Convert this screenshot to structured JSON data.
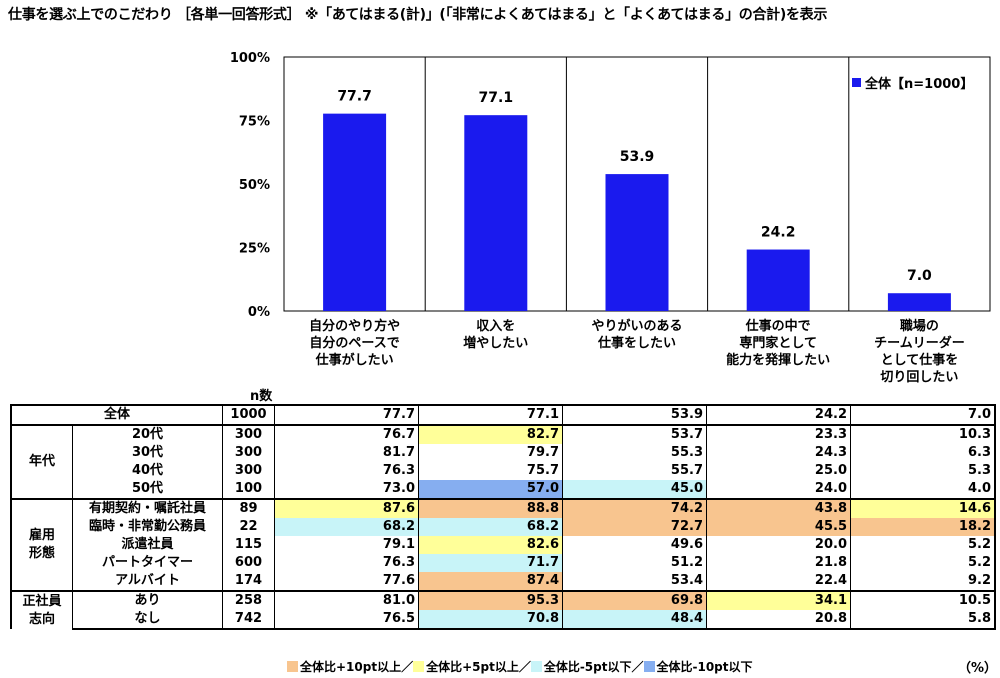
{
  "title": "仕事を選ぶ上でのこだわり ［各単一回答形式］ ※「あてはまる(計)」(「非常によくあてはまる」と「よくあてはまる」の合計)を表示",
  "legend": {
    "label": "全体【n=1000】",
    "color": "#1a1aee"
  },
  "n_header": "n数",
  "unit": "（%）",
  "chart_data": {
    "type": "bar",
    "categories": [
      "自分のやり方や\n自分のペースで\n仕事がしたい",
      "収入を\n増やしたい",
      "やりがいのある\n仕事をしたい",
      "仕事の中で\n専門家として\n能力を発揮したい",
      "職場の\nチームリーダー\nとして仕事を\n切り回したい"
    ],
    "series": [
      {
        "name": "全体【n=1000】",
        "values": [
          77.7,
          77.1,
          53.9,
          24.2,
          7.0
        ]
      }
    ],
    "value_labels": [
      "77.7",
      "77.1",
      "53.9",
      "24.2",
      "7.0"
    ],
    "yticks": [
      "100%",
      "75%",
      "50%",
      "25%",
      "0%"
    ],
    "ylim": [
      0,
      100
    ],
    "grid": false,
    "legend_position": "top-right"
  },
  "table": {
    "groups": [
      {
        "label": "",
        "rows": [
          {
            "label": "全体",
            "n": "1000",
            "values": [
              "77.7",
              "77.1",
              "53.9",
              "24.2",
              "7.0"
            ],
            "hl": [
              "",
              "",
              "",
              "",
              ""
            ]
          }
        ]
      },
      {
        "label": "年代",
        "rows": [
          {
            "label": "20代",
            "n": "300",
            "values": [
              "76.7",
              "82.7",
              "53.7",
              "23.3",
              "10.3"
            ],
            "hl": [
              "",
              "p",
              "",
              "",
              ""
            ]
          },
          {
            "label": "30代",
            "n": "300",
            "values": [
              "81.7",
              "79.7",
              "55.3",
              "24.3",
              "6.3"
            ],
            "hl": [
              "",
              "",
              "",
              "",
              ""
            ]
          },
          {
            "label": "40代",
            "n": "300",
            "values": [
              "76.3",
              "75.7",
              "55.7",
              "25.0",
              "5.3"
            ],
            "hl": [
              "",
              "",
              "",
              "",
              ""
            ]
          },
          {
            "label": "50代",
            "n": "100",
            "values": [
              "73.0",
              "57.0",
              "45.0",
              "24.0",
              "4.0"
            ],
            "hl": [
              "",
              "mm",
              "m",
              "",
              ""
            ]
          }
        ]
      },
      {
        "label": "雇用\n形態",
        "rows": [
          {
            "label": "有期契約・嘱託社員",
            "n": "89",
            "values": [
              "87.6",
              "88.8",
              "74.2",
              "43.8",
              "14.6"
            ],
            "hl": [
              "p",
              "pp",
              "pp",
              "pp",
              "p"
            ]
          },
          {
            "label": "臨時・非常勤公務員",
            "n": "22",
            "values": [
              "68.2",
              "68.2",
              "72.7",
              "45.5",
              "18.2"
            ],
            "hl": [
              "m",
              "m",
              "pp",
              "pp",
              "pp"
            ]
          },
          {
            "label": "派遣社員",
            "n": "115",
            "values": [
              "79.1",
              "82.6",
              "49.6",
              "20.0",
              "5.2"
            ],
            "hl": [
              "",
              "p",
              "",
              "",
              ""
            ]
          },
          {
            "label": "パートタイマー",
            "n": "600",
            "values": [
              "76.3",
              "71.7",
              "51.2",
              "21.8",
              "5.2"
            ],
            "hl": [
              "",
              "m",
              "",
              "",
              ""
            ]
          },
          {
            "label": "アルバイト",
            "n": "174",
            "values": [
              "77.6",
              "87.4",
              "53.4",
              "22.4",
              "9.2"
            ],
            "hl": [
              "",
              "pp",
              "",
              "",
              ""
            ]
          }
        ]
      },
      {
        "label": "正社員\n志向",
        "rows": [
          {
            "label": "あり",
            "n": "258",
            "values": [
              "81.0",
              "95.3",
              "69.8",
              "34.1",
              "10.5"
            ],
            "hl": [
              "",
              "pp",
              "pp",
              "p",
              ""
            ]
          },
          {
            "label": "なし",
            "n": "742",
            "values": [
              "76.5",
              "70.8",
              "48.4",
              "20.8",
              "5.8"
            ],
            "hl": [
              "",
              "m",
              "m",
              "",
              ""
            ]
          }
        ]
      }
    ]
  },
  "footer_legend": [
    {
      "label": "全体比+10pt以上／",
      "color": "#f8c58f"
    },
    {
      "label": "全体比+5pt以上／",
      "color": "#ffff99"
    },
    {
      "label": "全体比-5pt以下／",
      "color": "#c8f4f8"
    },
    {
      "label": "全体比-10pt以下",
      "color": "#86aef0"
    }
  ]
}
